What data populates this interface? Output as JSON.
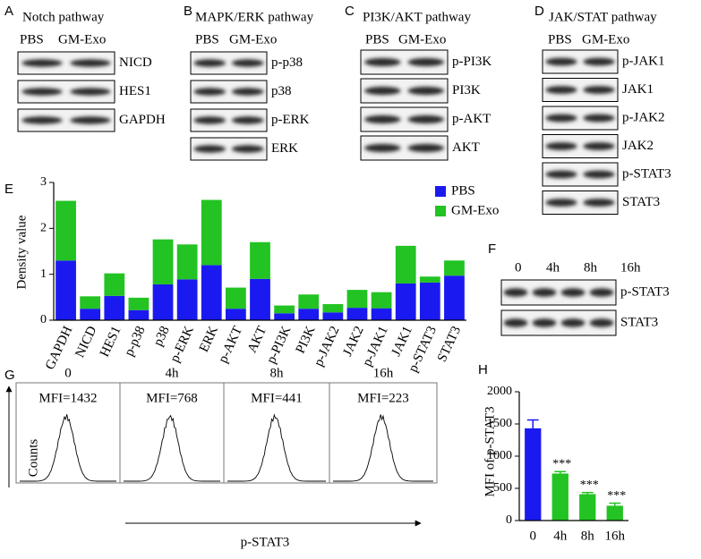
{
  "blots": [
    {
      "letter": "A",
      "title": "Notch pathway",
      "columns": [
        "PBS",
        "GM-Exo"
      ],
      "rows": [
        "NICD",
        "HES1",
        "GAPDH"
      ]
    },
    {
      "letter": "B",
      "title": "MAPK/ERK pathway",
      "columns": [
        "PBS",
        "GM-Exo"
      ],
      "rows": [
        "p-p38",
        "p38",
        "p-ERK",
        "ERK"
      ]
    },
    {
      "letter": "C",
      "title": "PI3K/AKT pathway",
      "columns": [
        "PBS",
        "GM-Exo"
      ],
      "rows": [
        "p-PI3K",
        "PI3K",
        "p-AKT",
        "AKT"
      ]
    },
    {
      "letter": "D",
      "title": "JAK/STAT pathway",
      "columns": [
        "PBS",
        "GM-Exo"
      ],
      "rows": [
        "p-JAK1",
        "JAK1",
        "p-JAK2",
        "JAK2",
        "p-STAT3",
        "STAT3"
      ]
    },
    {
      "letter": "F",
      "columns": [
        "0",
        "4h",
        "8h",
        "16h"
      ],
      "rows": [
        "p-STAT3",
        "STAT3"
      ]
    }
  ],
  "flow": {
    "letter": "G",
    "columns": [
      "0",
      "4h",
      "8h",
      "16h"
    ],
    "mfi": [
      "MFI=1432",
      "MFI=768",
      "MFI=441",
      "MFI=223"
    ],
    "ylabel": "Counts",
    "xlabel": "p-STAT3"
  },
  "chart_data": [
    {
      "type": "stacked_bar",
      "letter": "E",
      "ylabel": "Density value",
      "categories": [
        "GAPDH",
        "NICD",
        "HES1",
        "p-p38",
        "p38",
        "p-ERK",
        "ERK",
        "p-AKT",
        "AKT",
        "p-PI3K",
        "PI3K",
        "p-JAK2",
        "JAK2",
        "p-JAK1",
        "JAK1",
        "p-STAT3",
        "STAT3"
      ],
      "series": [
        {
          "name": "PBS",
          "color": "#1a1af0",
          "values": [
            1.3,
            0.25,
            0.53,
            0.22,
            0.78,
            0.89,
            1.2,
            0.25,
            0.9,
            0.15,
            0.25,
            0.17,
            0.27,
            0.26,
            0.8,
            0.82,
            0.97
          ]
        },
        {
          "name": "GM-Exo",
          "color": "#22c322",
          "values": [
            1.3,
            0.27,
            0.49,
            0.27,
            0.98,
            0.76,
            1.42,
            0.46,
            0.8,
            0.17,
            0.31,
            0.18,
            0.39,
            0.35,
            0.82,
            0.13,
            0.33
          ]
        }
      ],
      "ylim": [
        0,
        3
      ],
      "yticks": [
        0,
        1,
        2,
        3
      ],
      "legend": "top-right"
    },
    {
      "type": "bar",
      "letter": "H",
      "ylabel": "MFI of p-STAT3",
      "categories": [
        "0",
        "4h",
        "8h",
        "16h"
      ],
      "values": [
        1432,
        730,
        410,
        230
      ],
      "errors": [
        130,
        30,
        25,
        40
      ],
      "colors": [
        "#1a1af0",
        "#22c322",
        "#22c322",
        "#22c322"
      ],
      "annotations": [
        null,
        "***",
        "***",
        "***"
      ],
      "ylim": [
        0,
        2000
      ],
      "yticks": [
        0,
        500,
        1000,
        1500,
        2000
      ]
    }
  ]
}
